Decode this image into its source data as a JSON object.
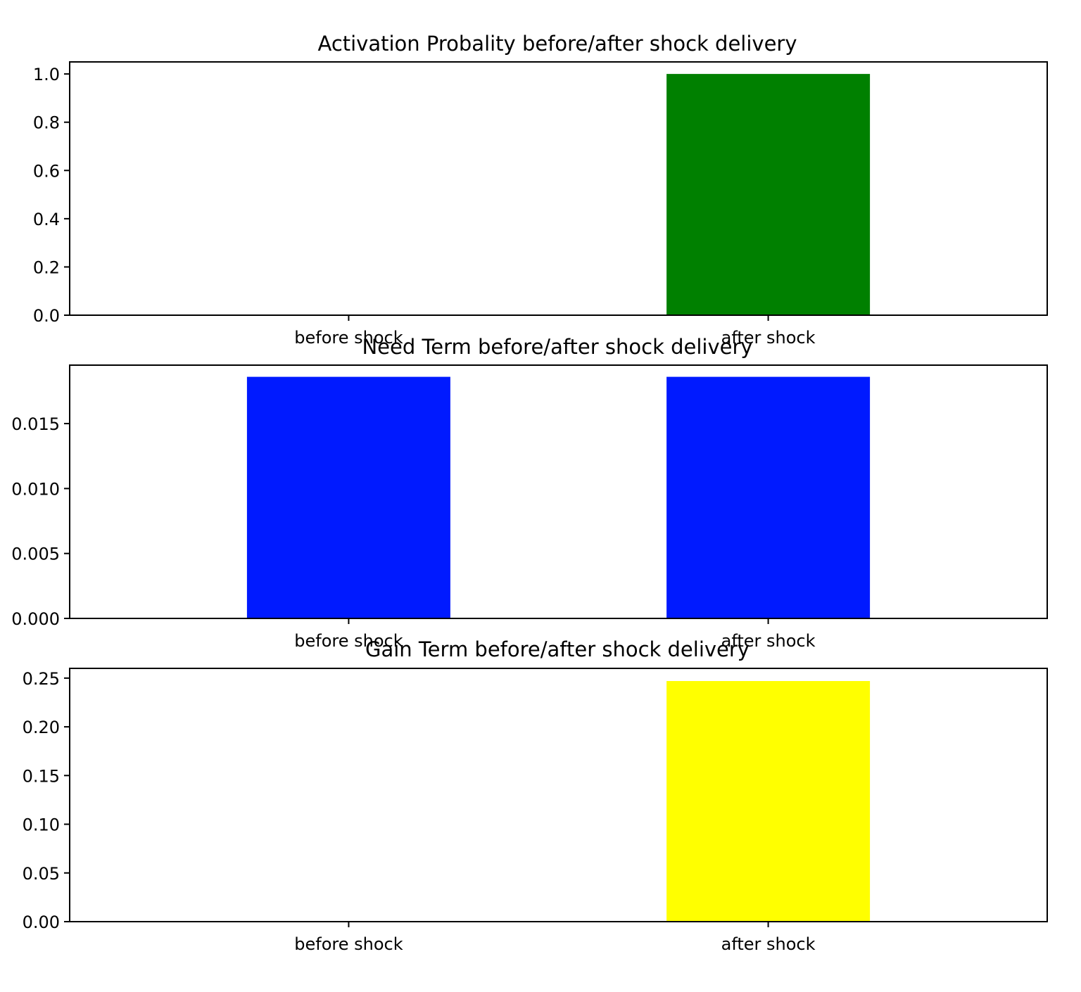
{
  "figure": {
    "background": "#ffffff"
  },
  "chart_data": [
    {
      "type": "bar",
      "title": "Activation Probality before/after shock delivery",
      "categories": [
        "before shock",
        "after shock"
      ],
      "values": [
        0.0,
        1.0
      ],
      "color": "#008000",
      "ylim": [
        0,
        1.05
      ],
      "yticks": [
        0.0,
        0.2,
        0.4,
        0.6,
        0.8,
        1.0
      ],
      "ytick_labels": [
        "0.0",
        "0.2",
        "0.4",
        "0.6",
        "0.8",
        "1.0"
      ],
      "xlabel": "",
      "ylabel": "",
      "grid": false
    },
    {
      "type": "bar",
      "title": "Need Term before/after shock delivery",
      "categories": [
        "before shock",
        "after shock"
      ],
      "values": [
        0.0186,
        0.0186
      ],
      "color": "#001aff",
      "ylim": [
        0,
        0.0195
      ],
      "yticks": [
        0.0,
        0.005,
        0.01,
        0.015
      ],
      "ytick_labels": [
        "0.000",
        "0.005",
        "0.010",
        "0.015"
      ],
      "xlabel": "",
      "ylabel": "",
      "grid": false
    },
    {
      "type": "bar",
      "title": "Gain Term before/after shock delivery",
      "categories": [
        "before shock",
        "after shock"
      ],
      "values": [
        0.0,
        0.247
      ],
      "color": "#ffff00",
      "ylim": [
        0,
        0.26
      ],
      "yticks": [
        0.0,
        0.05,
        0.1,
        0.15,
        0.2,
        0.25
      ],
      "ytick_labels": [
        "0.00",
        "0.05",
        "0.10",
        "0.15",
        "0.20",
        "0.25"
      ],
      "xlabel": "",
      "ylabel": "",
      "grid": false
    }
  ]
}
